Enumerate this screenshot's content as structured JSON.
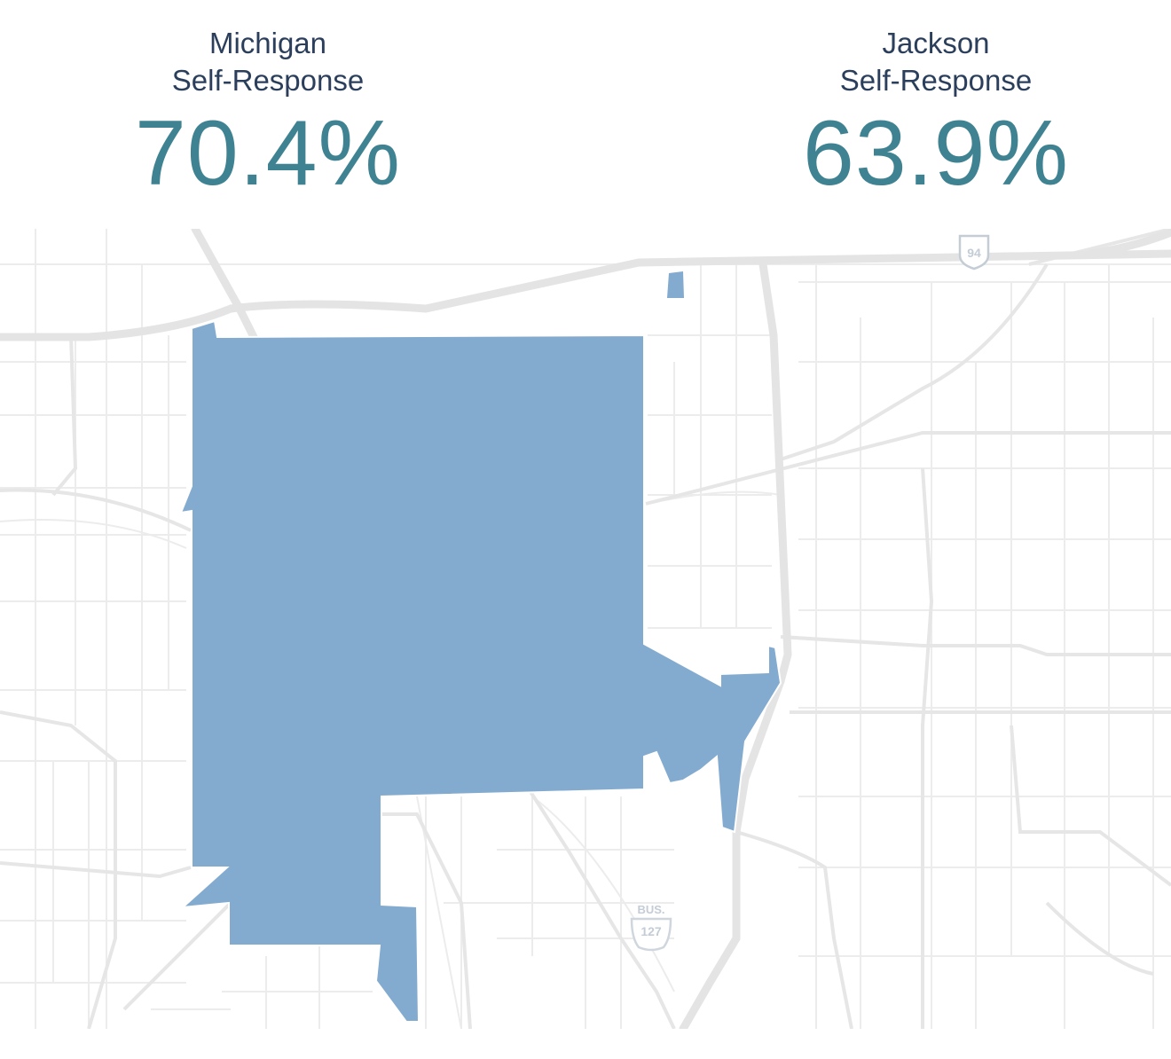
{
  "stats": [
    {
      "line1": "Michigan",
      "line2": "Self-Response",
      "value": "70.4%"
    },
    {
      "line1": "Jackson",
      "line2": "Self-Response",
      "value": "63.9%"
    }
  ],
  "map": {
    "region_fill": "#83abcf",
    "road_color": "#e5e5e5",
    "shields": {
      "interstate": {
        "number": "94"
      },
      "business_route": {
        "top": "BUS.",
        "number": "127"
      }
    }
  }
}
